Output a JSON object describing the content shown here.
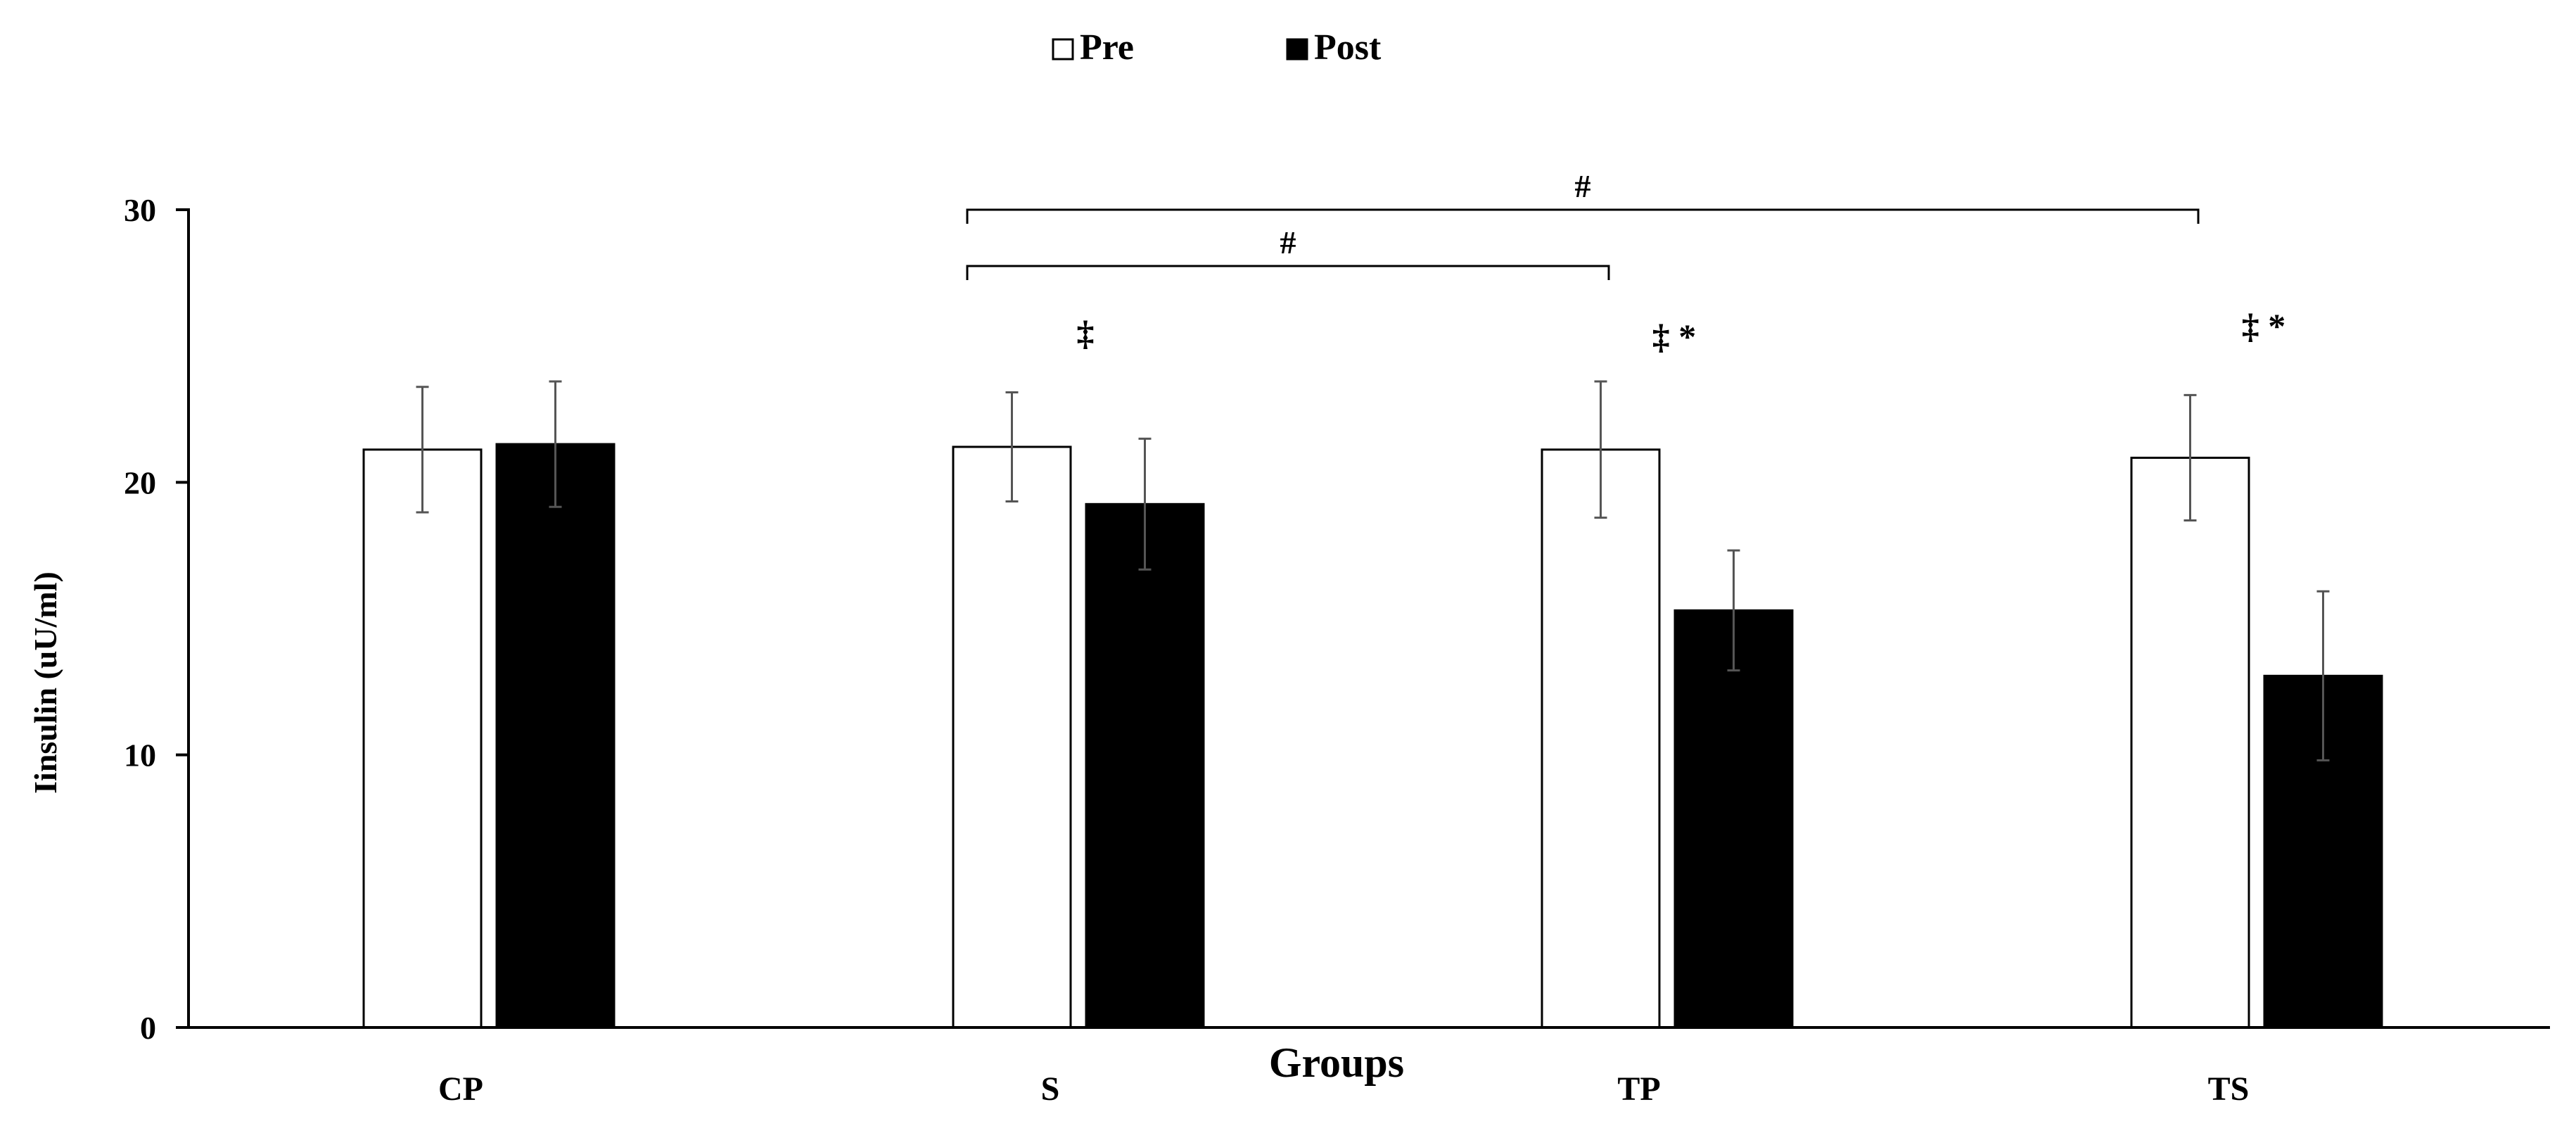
{
  "chart_data": {
    "type": "bar",
    "title": "",
    "xlabel": "Groups",
    "ylabel": "Iinsulin (uU/ml)",
    "ylim": [
      0,
      30
    ],
    "yticks": [
      "0",
      "10",
      "20",
      "30"
    ],
    "grid": false,
    "legend_position": "top-center",
    "categories": [
      "CP",
      "S",
      "TP",
      "TS"
    ],
    "series": [
      {
        "name": "Pre",
        "color": "#ffffff",
        "values": [
          21.2,
          21.3,
          21.2,
          20.9
        ],
        "errors": [
          2.3,
          2.0,
          2.5,
          2.3
        ]
      },
      {
        "name": "Post",
        "color": "#000000",
        "values": [
          21.4,
          19.2,
          15.3,
          12.9
        ],
        "errors": [
          2.3,
          2.4,
          2.2,
          3.1
        ]
      }
    ],
    "annotations": [
      {
        "category": "S",
        "text": "‡"
      },
      {
        "category": "TP",
        "text": "‡ *"
      },
      {
        "category": "TS",
        "text": "‡ *"
      }
    ],
    "brackets": [
      {
        "from": "S",
        "to": "TS",
        "label": "#"
      },
      {
        "from": "S",
        "to": "TP",
        "label": "#"
      }
    ]
  }
}
